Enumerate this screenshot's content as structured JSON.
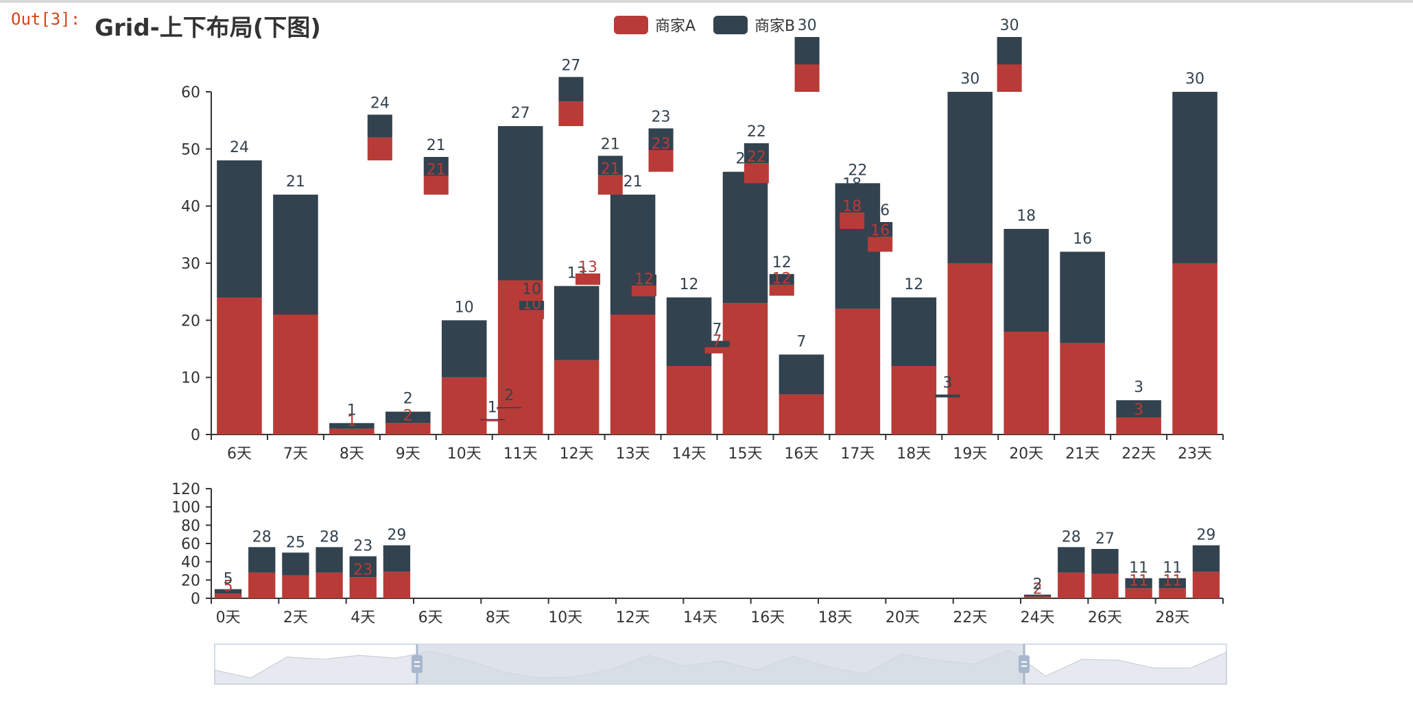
{
  "notebook": {
    "out_prompt": "Out[3]:"
  },
  "chart_data": {
    "type": "bar",
    "title": "Grid-上下布局(下图)",
    "legend": {
      "position": "top-center",
      "items": [
        {
          "name": "商家A",
          "color": "#b83b37"
        },
        {
          "name": "商家B",
          "color": "#33424f"
        }
      ]
    },
    "colors": {
      "A": "#b83b37",
      "B": "#33424f",
      "axis": "#333333",
      "dataZoomFill": "#d3d9e3"
    },
    "top": {
      "categories": [
        "6天",
        "7天",
        "8天",
        "9天",
        "10天",
        "11天",
        "12天",
        "13天",
        "14天",
        "15天",
        "16天",
        "17天",
        "18天",
        "19天",
        "20天",
        "21天",
        "22天",
        "23天"
      ],
      "yticks": [
        0,
        10,
        20,
        30,
        40,
        50,
        60
      ],
      "ylim": [
        0,
        60
      ],
      "bars": [
        {
          "x": "6天",
          "A": 24,
          "B": 24,
          "labelB": "24"
        },
        {
          "x": "7天",
          "A": 21,
          "B": 21,
          "labelB": "21"
        },
        {
          "x": "8天",
          "A": 1,
          "B": 1,
          "labelA": "1",
          "labelB": "1"
        },
        {
          "x": "9天",
          "A": 2,
          "B": 2,
          "labelA": "2",
          "labelB": "2"
        },
        {
          "x": "10天",
          "A": 10,
          "B": 10,
          "labelB": "10"
        },
        {
          "x": "11天",
          "A": 27,
          "B": 27,
          "labelB": "27"
        },
        {
          "x": "12天",
          "A": 13,
          "B": 13,
          "labelB": "13"
        },
        {
          "x": "13天",
          "A": 21,
          "B": 21,
          "labelB": "21"
        },
        {
          "x": "14天",
          "A": 12,
          "B": 12,
          "labelB": "12"
        },
        {
          "x": "15天",
          "A": 23,
          "B": 23,
          "labelB": "23"
        },
        {
          "x": "16天",
          "A": 7,
          "B": 7,
          "labelB": "7"
        },
        {
          "x": "17天",
          "A": 22,
          "B": 22,
          "labelB": "22"
        },
        {
          "x": "18天",
          "A": 12,
          "B": 12,
          "labelB": "12"
        },
        {
          "x": "19天",
          "A": 30,
          "B": 30,
          "labelB": "30"
        },
        {
          "x": "20天",
          "A": 18,
          "B": 18,
          "labelB": "18"
        },
        {
          "x": "21天",
          "A": 16,
          "B": 16,
          "labelB": "16"
        },
        {
          "x": "22天",
          "A": 3,
          "B": 3,
          "labelA": "3",
          "labelB": "3"
        },
        {
          "x": "23天",
          "A": 30,
          "B": 30,
          "labelB": "30"
        }
      ],
      "ghost_bars": [
        {
          "xpos": 8.5,
          "base": 48,
          "A": 4,
          "B": 4,
          "labelB": "24"
        },
        {
          "xpos": 9.5,
          "base": 42,
          "A": 3.3,
          "B": 3.3,
          "labelA": "21",
          "labelB": "21"
        },
        {
          "xpos": 10.5,
          "base": 2.3,
          "A": 0.2,
          "B": 0.2,
          "labelB": "1"
        },
        {
          "xpos": 10.8,
          "base": 4.4,
          "A": 0.2,
          "B": 0.2,
          "labelB": "2"
        },
        {
          "xpos": 11.2,
          "base": 20.2,
          "A": 1.6,
          "B": 1.6,
          "labelA": "10",
          "labelB": "10"
        },
        {
          "xpos": 11.9,
          "base": 54,
          "A": 4.3,
          "B": 4.3,
          "labelB": "27"
        },
        {
          "xpos": 12.2,
          "base": 26.2,
          "A": 2,
          "B": 0,
          "labelA": "13"
        },
        {
          "xpos": 12.6,
          "base": 42,
          "A": 3.4,
          "B": 3.4,
          "labelA": "21",
          "labelB": "21"
        },
        {
          "xpos": 13.2,
          "base": 24.2,
          "A": 1.9,
          "B": 1.9,
          "labelA": "12",
          "labelB": "12"
        },
        {
          "xpos": 13.5,
          "base": 46,
          "A": 3.8,
          "B": 3.8,
          "labelA": "23",
          "labelB": "23"
        },
        {
          "xpos": 14.5,
          "base": 14.2,
          "A": 1.1,
          "B": 1.1,
          "labelA": "7",
          "labelB": "7"
        },
        {
          "xpos": 15.2,
          "base": 44,
          "A": 3.5,
          "B": 3.5,
          "labelA": "22",
          "labelB": "22"
        },
        {
          "xpos": 15.65,
          "base": 24.3,
          "A": 1.9,
          "B": 1.9,
          "labelA": "12",
          "labelB": "12"
        },
        {
          "xpos": 16.1,
          "base": 60,
          "A": 4.8,
          "B": 4.8,
          "labelB": "30"
        },
        {
          "xpos": 16.9,
          "base": 36,
          "A": 2.9,
          "B": 2.9,
          "labelA": "18",
          "labelB": "18"
        },
        {
          "xpos": 17.4,
          "base": 32,
          "A": 2.6,
          "B": 2.6,
          "labelA": "16",
          "labelB": "16"
        },
        {
          "xpos": 18.6,
          "base": 6.5,
          "A": 0,
          "B": 0.5,
          "labelB": "3"
        },
        {
          "xpos": 19.7,
          "base": 60,
          "A": 4.8,
          "B": 4.8,
          "labelB": "30"
        }
      ]
    },
    "bottom": {
      "categories": [
        "0天",
        "2天",
        "4天",
        "6天",
        "8天",
        "10天",
        "12天",
        "14天",
        "16天",
        "18天",
        "20天",
        "22天",
        "24天",
        "26天",
        "28天"
      ],
      "yticks": [
        0,
        20,
        40,
        60,
        80,
        100,
        120
      ],
      "ylim": [
        0,
        120
      ],
      "bars": [
        {
          "x": "0天",
          "A": 5,
          "B": 5,
          "labelA": "5",
          "labelB": "5"
        },
        {
          "x": "1天",
          "A": 28,
          "B": 28,
          "labelB": "28"
        },
        {
          "x": "2天",
          "A": 25,
          "B": 25,
          "labelB": "25"
        },
        {
          "x": "3天",
          "A": 28,
          "B": 28,
          "labelB": "28"
        },
        {
          "x": "4天",
          "A": 23,
          "B": 23,
          "labelA": "23",
          "labelB": "23"
        },
        {
          "x": "5天",
          "A": 29,
          "B": 29,
          "labelB": "29"
        },
        {
          "x": "24天",
          "A": 2,
          "B": 2,
          "labelA": "2",
          "labelB": "2"
        },
        {
          "x": "25天",
          "A": 28,
          "B": 28,
          "labelB": "28"
        },
        {
          "x": "26天",
          "A": 27,
          "B": 27,
          "labelB": "27"
        },
        {
          "x": "27天",
          "A": 11,
          "B": 11,
          "labelA": "11",
          "labelB": "11"
        },
        {
          "x": "28天",
          "A": 11,
          "B": 11,
          "labelA": "11",
          "labelB": "11"
        },
        {
          "x": "29天",
          "A": 29,
          "B": 29,
          "labelB": "29"
        }
      ]
    },
    "datazoom": {
      "range_start": 0.2,
      "range_end": 0.8,
      "preview": [
        0.35,
        0.15,
        0.68,
        0.62,
        0.72,
        0.65,
        0.82,
        0.6,
        0.3,
        0.15,
        0.18,
        0.38,
        0.72,
        0.45,
        0.58,
        0.35,
        0.7,
        0.42,
        0.25,
        0.75,
        0.6,
        0.5,
        0.85,
        0.2,
        0.62,
        0.6,
        0.4,
        0.4,
        0.8
      ]
    }
  }
}
